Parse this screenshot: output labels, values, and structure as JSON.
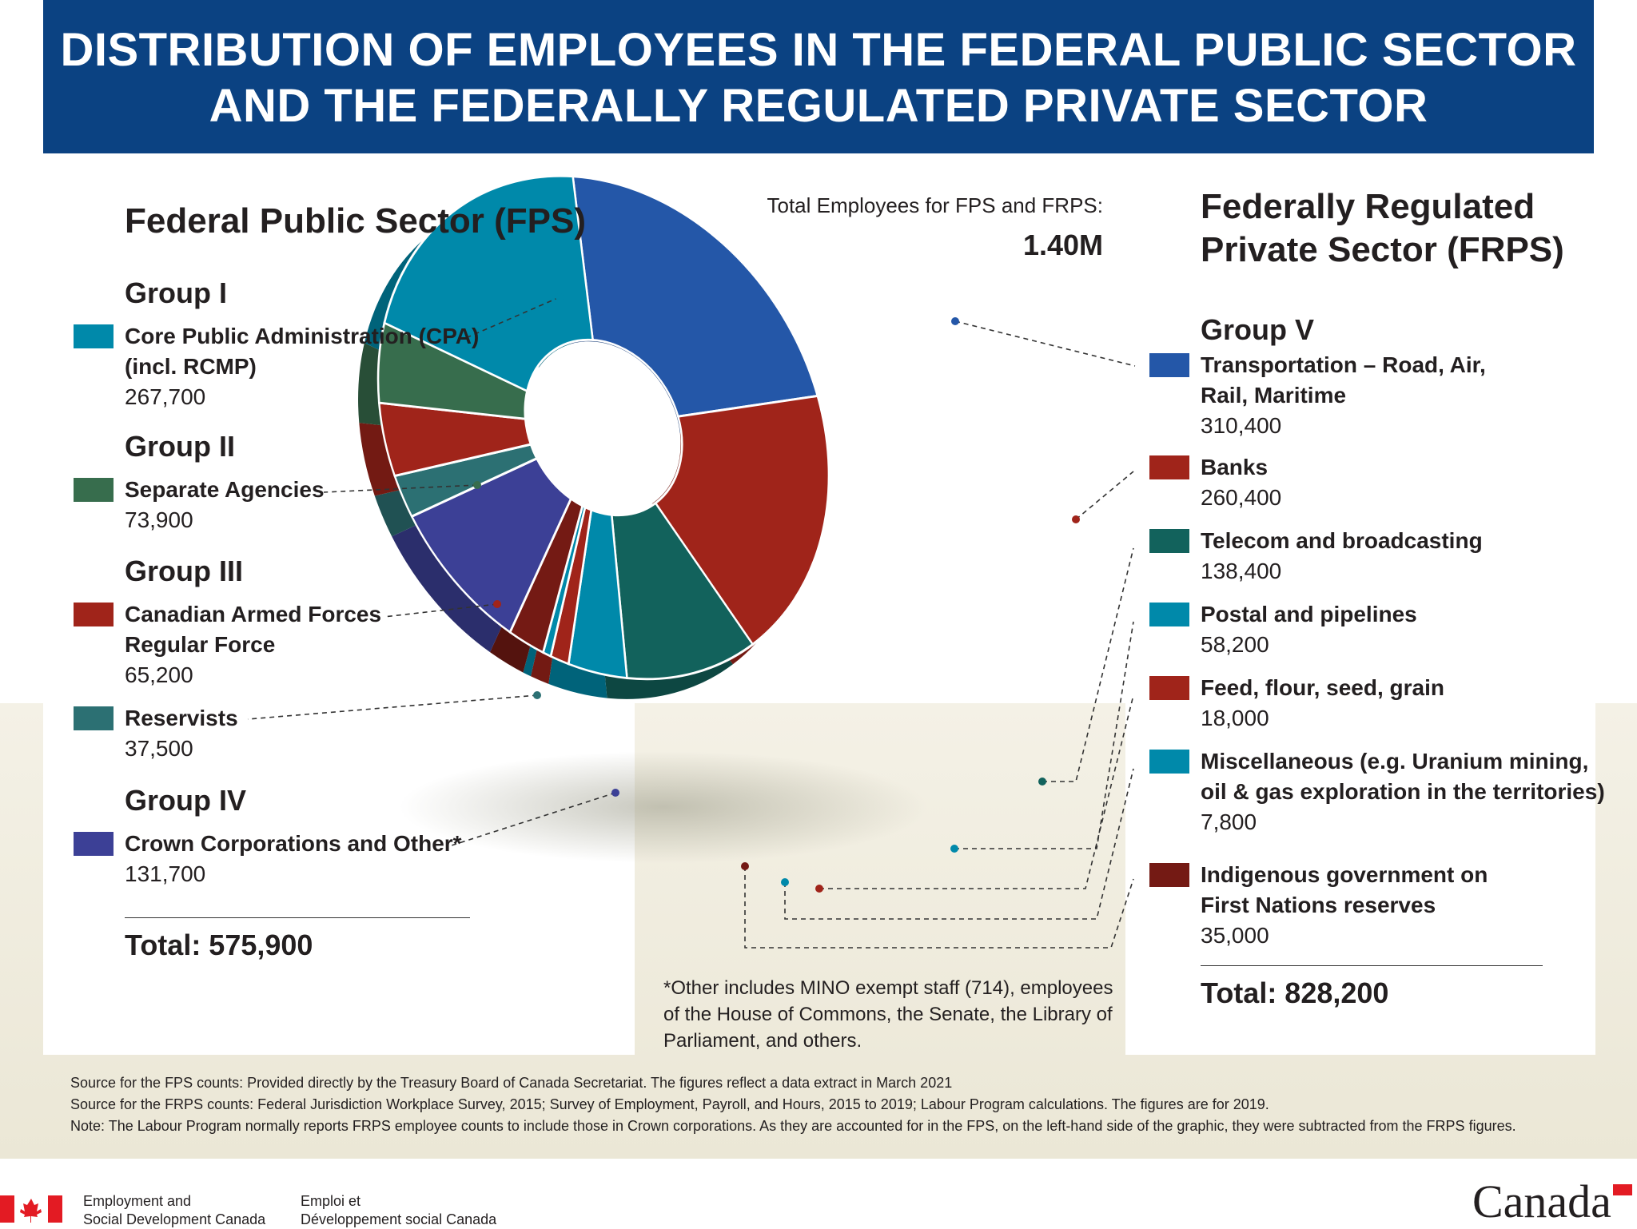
{
  "title_lines": [
    "DISTRIBUTION OF EMPLOYEES IN THE FEDERAL PUBLIC SECTOR",
    "AND THE FEDERALLY REGULATED PRIVATE SECTOR"
  ],
  "total_label": "Total Employees for FPS and FRPS:",
  "total_value": "1.40M",
  "fps": {
    "heading": "Federal Public Sector (FPS)",
    "total": "Total: 575,900",
    "groups": [
      {
        "group": "Group I",
        "label_lines": [
          "Core Public Administration (CPA)",
          "(incl. RCMP)"
        ],
        "value": "267,700",
        "color": "#0089aa"
      },
      {
        "group": "Group II",
        "label_lines": [
          "Separate Agencies"
        ],
        "value": "73,900",
        "color": "#376d4d"
      },
      {
        "group": "Group III",
        "label_lines": [
          "Canadian Armed Forces",
          "Regular Force"
        ],
        "value": "65,200",
        "color": "#a0241a"
      },
      {
        "group": "",
        "label_lines": [
          "Reservists"
        ],
        "value": "37,500",
        "color": "#2c7073"
      },
      {
        "group": "Group IV",
        "label_lines": [
          "Crown Corporations and Other*"
        ],
        "value": "131,700",
        "color": "#3c4096"
      }
    ]
  },
  "frps": {
    "heading_lines": [
      "Federally Regulated",
      "Private Sector (FRPS)"
    ],
    "group": "Group V",
    "total": "Total: 828,200",
    "items": [
      {
        "label_lines": [
          "Transportation – Road, Air,",
          "Rail, Maritime"
        ],
        "value": "310,400",
        "color": "#2457a8"
      },
      {
        "label_lines": [
          "Banks"
        ],
        "value": "260,400",
        "color": "#a0241a"
      },
      {
        "label_lines": [
          "Telecom and broadcasting"
        ],
        "value": "138,400",
        "color": "#12625c"
      },
      {
        "label_lines": [
          "Postal and pipelines"
        ],
        "value": "58,200",
        "color": "#0089aa"
      },
      {
        "label_lines": [
          "Feed, flour, seed, grain"
        ],
        "value": "18,000",
        "color": "#a0241a"
      },
      {
        "label_lines": [
          "Miscellaneous (e.g. Uranium mining,",
          "oil & gas exploration in the territories)"
        ],
        "value": "7,800",
        "color": "#0089aa"
      },
      {
        "label_lines": [
          "Indigenous government on",
          "First Nations reserves"
        ],
        "value": "35,000",
        "color": "#741a14"
      }
    ]
  },
  "footnote_lines": [
    "*Other includes MINO exempt staff (714), employees",
    "of the House of Commons, the Senate, the Library of",
    "Parliament, and others."
  ],
  "sources": [
    "Source for the FPS counts: Provided directly by the Treasury Board of Canada Secretariat. The figures reflect a data extract in March 2021",
    "Source for the FRPS counts: Federal Jurisdiction Workplace Survey, 2015; Survey of Employment, Payroll, and Hours, 2015 to 2019; Labour Program calculations. The figures are for 2019.",
    "Note: The Labour Program normally reports FRPS employee counts to include those in Crown corporations. As they are accounted for in the FPS, on the left-hand side of the graphic, they were subtracted from the FRPS figures."
  ],
  "branding": {
    "en_lines": [
      "Employment and",
      "Social Development Canada"
    ],
    "fr_lines": [
      "Emploi et",
      "Développement social Canada"
    ],
    "wordmark": "Canada"
  },
  "chart_data": {
    "type": "pie",
    "donut": true,
    "title": "",
    "categories": [
      "Transportation – Road, Air, Rail, Maritime",
      "Banks",
      "Telecom and broadcasting",
      "Postal and pipelines",
      "Feed, flour, seed, grain",
      "Miscellaneous (e.g. Uranium mining, oil & gas exploration in the territories)",
      "Indigenous government on First Nations reserves",
      "Crown Corporations and Other*",
      "Reservists",
      "Canadian Armed Forces Regular Force",
      "Separate Agencies",
      "Core Public Administration (CPA) (incl. RCMP)"
    ],
    "values": [
      310400,
      260400,
      138400,
      58200,
      18000,
      7800,
      35000,
      131700,
      37500,
      65200,
      73900,
      267700
    ],
    "colors": [
      "#2457a8",
      "#a0241a",
      "#12625c",
      "#0089aa",
      "#a0241a",
      "#0089aa",
      "#741a14",
      "#3c4096",
      "#2c7073",
      "#a0241a",
      "#376d4d",
      "#0089aa"
    ]
  }
}
